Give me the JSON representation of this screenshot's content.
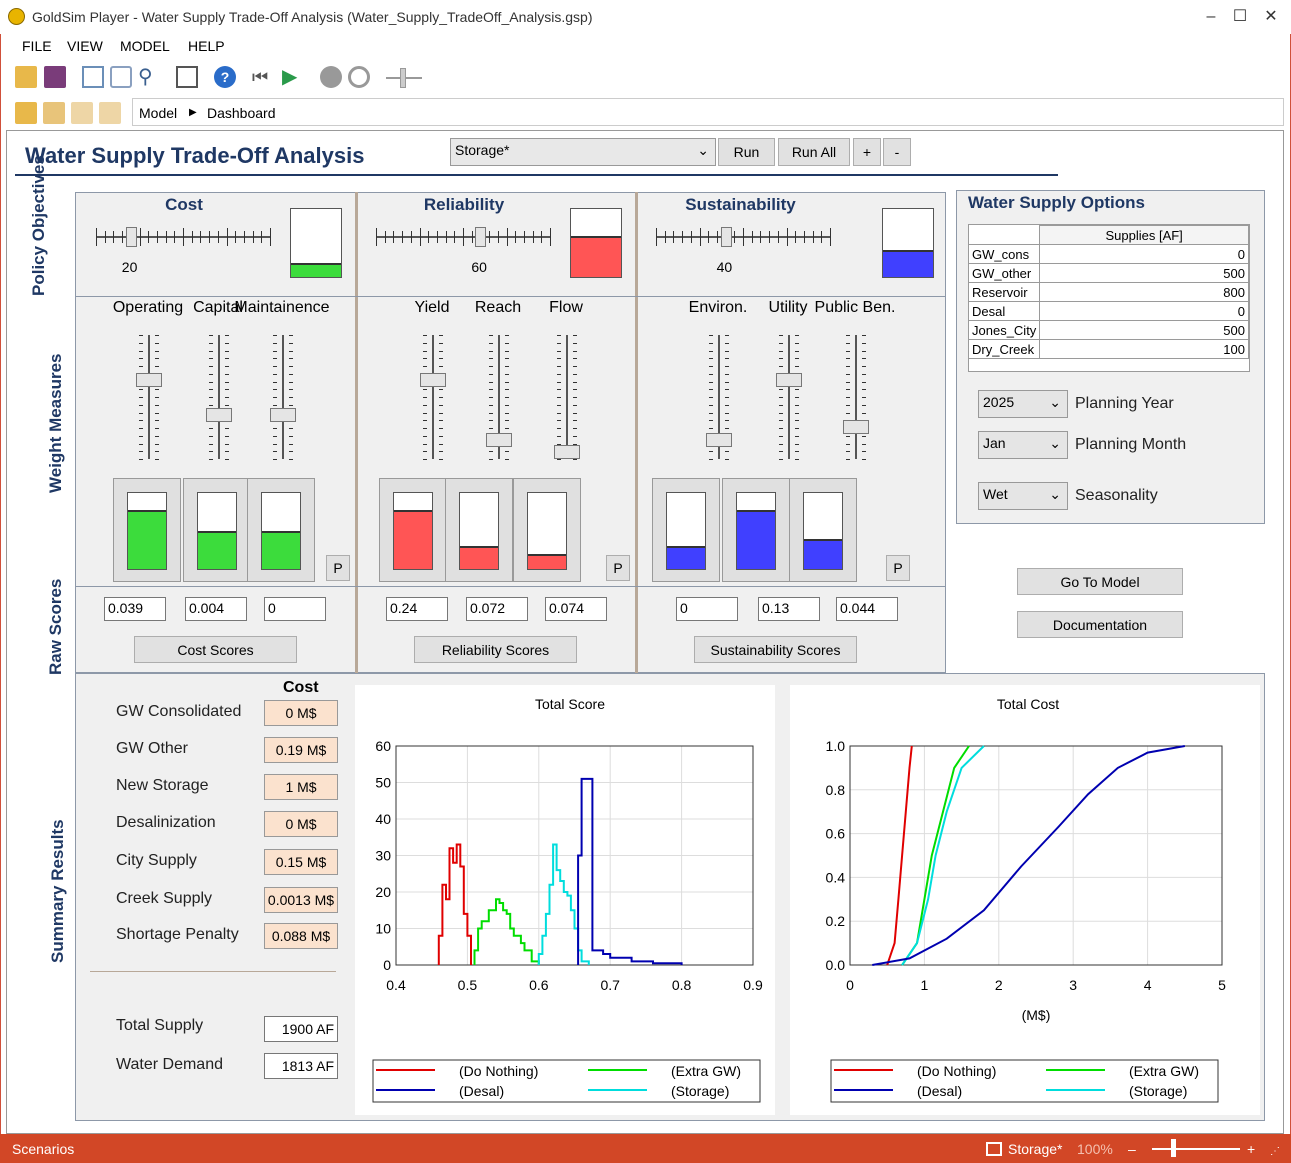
{
  "window": {
    "title": "GoldSim Player - Water Supply Trade-Off Analysis (Water_Supply_TradeOff_Analysis.gsp)"
  },
  "menu": [
    "FILE",
    "VIEW",
    "MODEL",
    "HELP"
  ],
  "breadcrumb": [
    "Model",
    "Dashboard"
  ],
  "dashboard": {
    "title": "Water Supply Trade-Off Analysis",
    "scenario": "Storage*",
    "run": "Run",
    "run_all": "Run All",
    "plus": "+",
    "minus": "-"
  },
  "objectives": {
    "label": "Policy Objectives",
    "cost": {
      "title": "Cost",
      "value": "20",
      "level": 0.2,
      "color": "#3cdc3c"
    },
    "reliability": {
      "title": "Reliability",
      "value": "60",
      "level": 0.6,
      "color": "#ff5555"
    },
    "sustainability": {
      "title": "Sustainability",
      "value": "40",
      "level": 0.4,
      "color": "#4040ff"
    }
  },
  "weights": {
    "label": "Weight Measures",
    "cost": [
      {
        "name": "Operating",
        "level": 0.78
      },
      {
        "name": "Capital",
        "level": 0.5
      },
      {
        "name": "Maintainence",
        "level": 0.5
      }
    ],
    "reliability": [
      {
        "name": "Yield",
        "level": 0.78
      },
      {
        "name": "Reach",
        "level": 0.3
      },
      {
        "name": "Flow",
        "level": 0.2
      }
    ],
    "sustainability": [
      {
        "name": "Environ.",
        "level": 0.3
      },
      {
        "name": "Utility",
        "level": 0.78
      },
      {
        "name": "Public Ben.",
        "level": 0.4
      }
    ],
    "p": "P"
  },
  "raw": {
    "label": "Raw Scores",
    "cost": [
      "0.039",
      "0.004",
      "0"
    ],
    "reliability": [
      "0.24",
      "0.072",
      "0.074"
    ],
    "sustainability": [
      "0",
      "0.13",
      "0.044"
    ],
    "cost_btn": "Cost Scores",
    "rel_btn": "Reliability Scores",
    "sus_btn": "Sustainability Scores"
  },
  "options": {
    "title": "Water Supply Options",
    "header": "Supplies [AF]",
    "rows": [
      [
        "GW_cons",
        "0"
      ],
      [
        "GW_other",
        "500"
      ],
      [
        "Reservoir",
        "800"
      ],
      [
        "Desal",
        "0"
      ],
      [
        "Jones_City",
        "500"
      ],
      [
        "Dry_Creek",
        "100"
      ]
    ],
    "year": "2025",
    "year_label": "Planning Year",
    "month": "Jan",
    "month_label": "Planning Month",
    "season": "Wet",
    "season_label": "Seasonality",
    "goto": "Go To Model",
    "docs": "Documentation"
  },
  "summary": {
    "label": "Summary Results",
    "cost_header": "Cost",
    "items": [
      [
        "GW Consolidated",
        "0 M$"
      ],
      [
        "GW Other",
        "0.19 M$"
      ],
      [
        "New Storage",
        "1 M$"
      ],
      [
        "Desalinization",
        "0 M$"
      ],
      [
        "City Supply",
        "0.15 M$"
      ],
      [
        "Creek Supply",
        "0.0013 M$"
      ],
      [
        "Shortage Penalty",
        "0.088 M$"
      ]
    ],
    "total_supply_label": "Total Supply",
    "total_supply": "1900 AF",
    "demand_label": "Water Demand",
    "demand": "1813 AF"
  },
  "chart_data": [
    {
      "type": "line",
      "title": "Total Score",
      "xlabel": "",
      "ylabel": "",
      "xlim": [
        0.4,
        0.9
      ],
      "ylim": [
        0,
        60
      ],
      "xticks": [
        "0.4",
        "0.5",
        "0.6",
        "0.7",
        "0.8",
        "0.9"
      ],
      "yticks": [
        "0",
        "10",
        "20",
        "30",
        "40",
        "50",
        "60"
      ],
      "series": [
        {
          "name": "(Do Nothing)",
          "color": "#e00000",
          "points": [
            [
              0.46,
              0
            ],
            [
              0.46,
              8
            ],
            [
              0.465,
              8
            ],
            [
              0.465,
              22
            ],
            [
              0.47,
              22
            ],
            [
              0.47,
              18
            ],
            [
              0.475,
              18
            ],
            [
              0.475,
              32
            ],
            [
              0.48,
              32
            ],
            [
              0.48,
              28
            ],
            [
              0.485,
              28
            ],
            [
              0.485,
              33
            ],
            [
              0.49,
              33
            ],
            [
              0.49,
              27
            ],
            [
              0.495,
              27
            ],
            [
              0.495,
              14
            ],
            [
              0.5,
              14
            ],
            [
              0.5,
              8
            ],
            [
              0.505,
              8
            ],
            [
              0.505,
              0
            ]
          ]
        },
        {
          "name": "(Extra GW)",
          "color": "#00dd00",
          "points": [
            [
              0.51,
              0
            ],
            [
              0.51,
              4
            ],
            [
              0.515,
              4
            ],
            [
              0.515,
              10
            ],
            [
              0.52,
              10
            ],
            [
              0.52,
              12
            ],
            [
              0.53,
              12
            ],
            [
              0.53,
              15
            ],
            [
              0.54,
              15
            ],
            [
              0.54,
              18
            ],
            [
              0.545,
              18
            ],
            [
              0.545,
              17
            ],
            [
              0.55,
              17
            ],
            [
              0.55,
              15
            ],
            [
              0.555,
              15
            ],
            [
              0.555,
              14
            ],
            [
              0.56,
              14
            ],
            [
              0.56,
              10
            ],
            [
              0.565,
              10
            ],
            [
              0.565,
              8
            ],
            [
              0.575,
              8
            ],
            [
              0.575,
              6
            ],
            [
              0.58,
              6
            ],
            [
              0.58,
              4
            ],
            [
              0.59,
              4
            ],
            [
              0.59,
              1
            ],
            [
              0.6,
              1
            ],
            [
              0.6,
              0
            ]
          ]
        },
        {
          "name": "(Storage)",
          "color": "#00dddd",
          "points": [
            [
              0.6,
              0
            ],
            [
              0.6,
              3
            ],
            [
              0.605,
              3
            ],
            [
              0.605,
              8
            ],
            [
              0.61,
              8
            ],
            [
              0.61,
              14
            ],
            [
              0.615,
              14
            ],
            [
              0.615,
              22
            ],
            [
              0.62,
              22
            ],
            [
              0.62,
              33
            ],
            [
              0.625,
              33
            ],
            [
              0.625,
              26
            ],
            [
              0.63,
              26
            ],
            [
              0.63,
              23
            ],
            [
              0.635,
              23
            ],
            [
              0.635,
              20
            ],
            [
              0.64,
              20
            ],
            [
              0.64,
              19
            ],
            [
              0.645,
              19
            ],
            [
              0.645,
              15
            ],
            [
              0.65,
              15
            ],
            [
              0.65,
              10
            ],
            [
              0.655,
              10
            ],
            [
              0.655,
              4
            ],
            [
              0.66,
              4
            ],
            [
              0.66,
              1
            ],
            [
              0.67,
              1
            ],
            [
              0.67,
              0
            ]
          ]
        },
        {
          "name": "(Desal)",
          "color": "#0000b0",
          "points": [
            [
              0.655,
              0
            ],
            [
              0.655,
              30
            ],
            [
              0.66,
              30
            ],
            [
              0.66,
              51
            ],
            [
              0.675,
              51
            ],
            [
              0.675,
              4
            ],
            [
              0.69,
              4
            ],
            [
              0.69,
              3
            ],
            [
              0.7,
              3
            ],
            [
              0.7,
              2
            ],
            [
              0.73,
              2
            ],
            [
              0.73,
              1
            ],
            [
              0.76,
              1
            ],
            [
              0.76,
              0.5
            ],
            [
              0.8,
              0.5
            ],
            [
              0.8,
              0
            ]
          ]
        }
      ]
    },
    {
      "type": "line",
      "title": "Total Cost",
      "xlabel": "(M$)",
      "ylabel": "",
      "xlim": [
        0,
        5
      ],
      "ylim": [
        0,
        1
      ],
      "xticks": [
        "0",
        "1",
        "2",
        "3",
        "4",
        "5"
      ],
      "yticks": [
        "0.0",
        "0.2",
        "0.4",
        "0.6",
        "0.8",
        "1.0"
      ],
      "series": [
        {
          "name": "(Do Nothing)",
          "color": "#e00000",
          "points": [
            [
              0.5,
              0
            ],
            [
              0.6,
              0.1
            ],
            [
              0.65,
              0.3
            ],
            [
              0.7,
              0.5
            ],
            [
              0.75,
              0.7
            ],
            [
              0.8,
              0.9
            ],
            [
              0.83,
              1
            ]
          ]
        },
        {
          "name": "(Extra GW)",
          "color": "#00dd00",
          "points": [
            [
              0.7,
              0
            ],
            [
              0.9,
              0.1
            ],
            [
              1.0,
              0.3
            ],
            [
              1.1,
              0.5
            ],
            [
              1.25,
              0.7
            ],
            [
              1.4,
              0.9
            ],
            [
              1.6,
              1
            ]
          ]
        },
        {
          "name": "(Storage)",
          "color": "#00dddd",
          "points": [
            [
              0.7,
              0
            ],
            [
              0.9,
              0.1
            ],
            [
              1.05,
              0.3
            ],
            [
              1.15,
              0.5
            ],
            [
              1.3,
              0.7
            ],
            [
              1.5,
              0.9
            ],
            [
              1.8,
              1
            ]
          ]
        },
        {
          "name": "(Desal)",
          "color": "#0000b0",
          "points": [
            [
              0.3,
              0
            ],
            [
              0.8,
              0.03
            ],
            [
              1.3,
              0.12
            ],
            [
              1.8,
              0.25
            ],
            [
              2.3,
              0.45
            ],
            [
              2.8,
              0.63
            ],
            [
              3.2,
              0.78
            ],
            [
              3.6,
              0.9
            ],
            [
              4.0,
              0.97
            ],
            [
              4.5,
              1
            ]
          ]
        }
      ]
    }
  ],
  "legend": [
    "(Do Nothing)",
    "(Extra GW)",
    "(Desal)",
    "(Storage)"
  ],
  "statusbar": {
    "left": "Scenarios",
    "scenario": "Storage*",
    "zoom": "100%",
    "minus": "–",
    "plus": "+"
  }
}
